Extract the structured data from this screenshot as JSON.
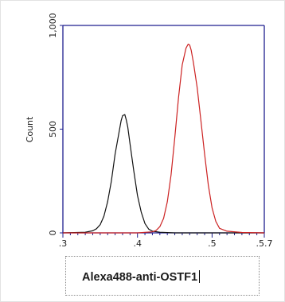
{
  "chart_data": {
    "type": "line",
    "xlabel": "",
    "ylabel": "Count",
    "x_tick_labels": [
      ".3",
      ".4",
      ".5",
      ".5.7"
    ],
    "x_ticks": [
      3,
      4,
      5,
      5.7
    ],
    "xlim": [
      3,
      5.7
    ],
    "y_tick_labels": [
      "0",
      "500",
      "1,000"
    ],
    "y_ticks": [
      0,
      500,
      1000
    ],
    "ylim": [
      0,
      1000
    ],
    "legend": [
      "Alexa488-anti-OSTF1"
    ],
    "series": [
      {
        "color": "#111111",
        "x": [
          3.0,
          3.3,
          3.4,
          3.45,
          3.5,
          3.55,
          3.6,
          3.65,
          3.7,
          3.75,
          3.78,
          3.8,
          3.83,
          3.85,
          3.87,
          3.9,
          3.95,
          4.0,
          4.05,
          4.1,
          4.15,
          4.2,
          4.3,
          4.5,
          5.0,
          5.7
        ],
        "y": [
          0,
          3,
          10,
          20,
          40,
          80,
          150,
          250,
          380,
          480,
          540,
          565,
          570,
          545,
          510,
          430,
          300,
          180,
          100,
          45,
          18,
          8,
          3,
          0,
          0,
          0
        ]
      },
      {
        "color": "#cc2222",
        "x": [
          3.0,
          4.0,
          4.2,
          4.25,
          4.3,
          4.35,
          4.4,
          4.45,
          4.5,
          4.55,
          4.6,
          4.65,
          4.68,
          4.7,
          4.72,
          4.75,
          4.8,
          4.85,
          4.9,
          4.95,
          5.0,
          5.05,
          5.1,
          5.2,
          5.4,
          5.7
        ],
        "y": [
          0,
          0,
          5,
          12,
          30,
          70,
          150,
          280,
          460,
          650,
          810,
          890,
          910,
          905,
          880,
          820,
          700,
          540,
          380,
          230,
          120,
          55,
          22,
          8,
          2,
          0
        ]
      }
    ]
  }
}
